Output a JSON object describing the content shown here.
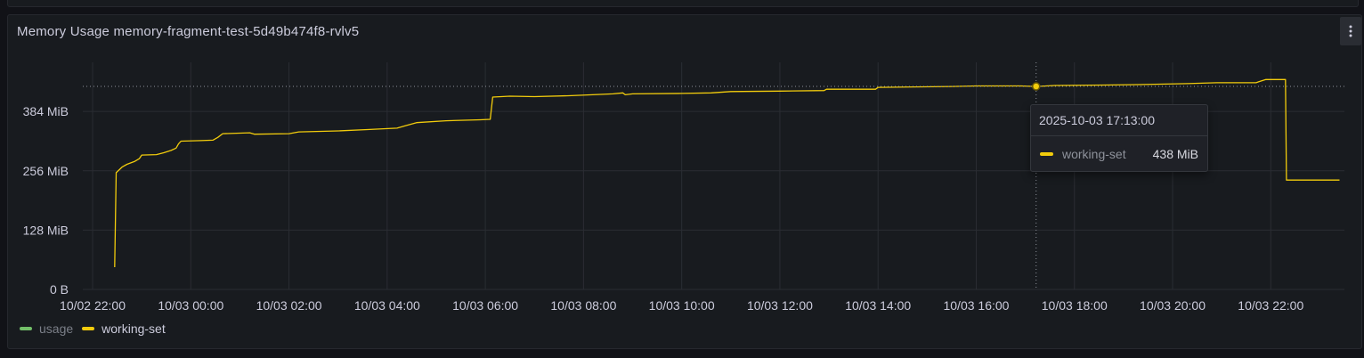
{
  "panel": {
    "title": "Memory Usage memory-fragment-test-5d49b474f8-rvlv5",
    "menu_icon": "kebab-menu-icon"
  },
  "colors": {
    "background": "#111217",
    "panel": "#181b1f",
    "grid": "#2a2d33",
    "axis_text": "#ccccdc",
    "usage": "#73bf69",
    "working_set": "#f2cc0c"
  },
  "legend": [
    {
      "label": "usage",
      "color": "#73bf69",
      "dimmed": true
    },
    {
      "label": "working-set",
      "color": "#f2cc0c",
      "dimmed": false
    }
  ],
  "tooltip": {
    "time": "2025-10-03 17:13:00",
    "series": "working-set",
    "value": "438 MiB",
    "color": "#f2cc0c"
  },
  "chart_data": {
    "type": "line",
    "title": "Memory Usage memory-fragment-test-5d49b474f8-rvlv5",
    "xlabel": "",
    "ylabel": "",
    "x_unit": "hours since 10/02 22:00",
    "xlim": [
      -0.2,
      25.5
    ],
    "ylim": [
      0,
      490
    ],
    "x_ticks": [
      {
        "value": 0,
        "label": "10/02 22:00"
      },
      {
        "value": 2,
        "label": "10/03 00:00"
      },
      {
        "value": 4,
        "label": "10/03 02:00"
      },
      {
        "value": 6,
        "label": "10/03 04:00"
      },
      {
        "value": 8,
        "label": "10/03 06:00"
      },
      {
        "value": 10,
        "label": "10/03 08:00"
      },
      {
        "value": 12,
        "label": "10/03 10:00"
      },
      {
        "value": 14,
        "label": "10/03 12:00"
      },
      {
        "value": 16,
        "label": "10/03 14:00"
      },
      {
        "value": 18,
        "label": "10/03 16:00"
      },
      {
        "value": 20,
        "label": "10/03 18:00"
      },
      {
        "value": 22,
        "label": "10/03 20:00"
      },
      {
        "value": 24,
        "label": "10/03 22:00"
      }
    ],
    "y_ticks": [
      {
        "value": 0,
        "label": "0 B"
      },
      {
        "value": 128,
        "label": "128 MiB"
      },
      {
        "value": 256,
        "label": "256 MiB"
      },
      {
        "value": 384,
        "label": "384 MiB"
      }
    ],
    "grid": true,
    "legend_position": "bottom-left",
    "hover": {
      "x": 19.22,
      "y": 438
    },
    "series": [
      {
        "name": "usage",
        "color": "#73bf69",
        "points": []
      },
      {
        "name": "working-set",
        "color": "#f2cc0c",
        "points": [
          [
            0.45,
            48
          ],
          [
            0.48,
            252
          ],
          [
            0.6,
            264
          ],
          [
            0.7,
            270
          ],
          [
            0.85,
            276
          ],
          [
            0.95,
            282
          ],
          [
            1.0,
            290
          ],
          [
            1.3,
            291
          ],
          [
            1.45,
            295
          ],
          [
            1.6,
            300
          ],
          [
            1.7,
            305
          ],
          [
            1.75,
            314
          ],
          [
            1.8,
            320
          ],
          [
            2.2,
            321
          ],
          [
            2.45,
            322
          ],
          [
            2.55,
            328
          ],
          [
            2.65,
            336
          ],
          [
            3.2,
            338
          ],
          [
            3.3,
            335
          ],
          [
            4.0,
            336
          ],
          [
            4.2,
            340
          ],
          [
            5.0,
            342
          ],
          [
            5.6,
            345
          ],
          [
            6.2,
            348
          ],
          [
            6.4,
            354
          ],
          [
            6.6,
            360
          ],
          [
            7.2,
            364
          ],
          [
            7.9,
            366
          ],
          [
            8.1,
            367
          ],
          [
            8.15,
            415
          ],
          [
            8.5,
            417
          ],
          [
            9.0,
            416
          ],
          [
            9.7,
            418
          ],
          [
            10.4,
            421
          ],
          [
            10.6,
            422
          ],
          [
            10.8,
            424
          ],
          [
            10.85,
            420
          ],
          [
            11.0,
            422
          ],
          [
            12.0,
            423
          ],
          [
            12.6,
            424
          ],
          [
            13.0,
            427
          ],
          [
            14.0,
            428
          ],
          [
            14.9,
            429
          ],
          [
            14.95,
            432
          ],
          [
            15.95,
            432
          ],
          [
            16.0,
            436
          ],
          [
            17.5,
            438
          ],
          [
            18.0,
            439
          ],
          [
            18.9,
            439
          ],
          [
            19.22,
            438
          ],
          [
            19.6,
            440
          ],
          [
            20.6,
            441
          ],
          [
            21.3,
            442
          ],
          [
            22.3,
            444
          ],
          [
            22.9,
            446
          ],
          [
            23.7,
            446
          ],
          [
            23.75,
            448
          ],
          [
            23.9,
            453
          ],
          [
            24.3,
            453
          ],
          [
            24.32,
            236
          ],
          [
            25.4,
            236
          ]
        ]
      }
    ]
  }
}
